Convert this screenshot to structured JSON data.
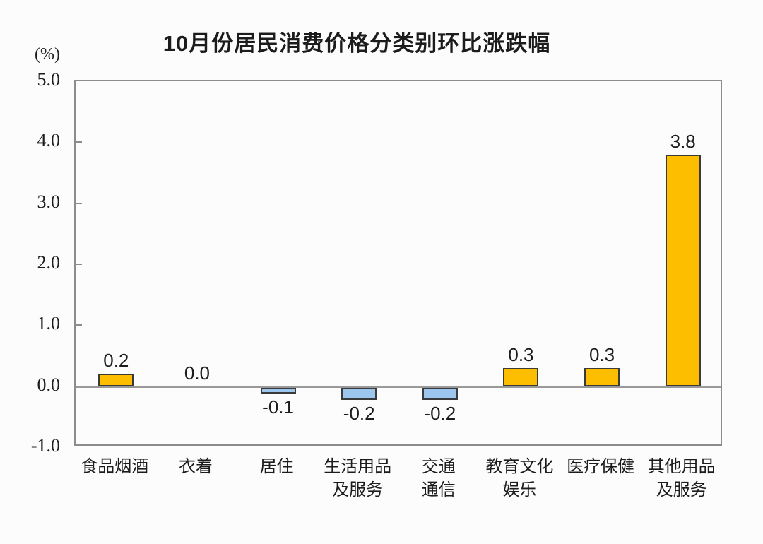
{
  "title": "10月份居民消费价格分类别环比涨跌幅",
  "unit_label": "(%)",
  "chart_data": {
    "type": "bar",
    "title": "10月份居民消费价格分类别环比涨跌幅",
    "ylabel": "(%)",
    "xlabel": "",
    "categories": [
      "食品烟酒",
      "衣着",
      "居住",
      "生活用品及服务",
      "交通通信",
      "教育文化娱乐",
      "医疗保健",
      "其他用品及服务"
    ],
    "category_lines": [
      [
        "食品烟酒"
      ],
      [
        "衣着"
      ],
      [
        "居住"
      ],
      [
        "生活用品",
        "及服务"
      ],
      [
        "交通",
        "通信"
      ],
      [
        "教育文化",
        "娱乐"
      ],
      [
        "医疗保健"
      ],
      [
        "其他用品",
        "及服务"
      ]
    ],
    "values": [
      0.2,
      0.0,
      -0.1,
      -0.2,
      -0.2,
      0.3,
      0.3,
      3.8
    ],
    "value_labels": [
      "0.2",
      "0.0",
      "-0.1",
      "-0.2",
      "-0.2",
      "0.3",
      "0.3",
      "3.8"
    ],
    "yticks": [
      5.0,
      4.0,
      3.0,
      2.0,
      1.0,
      0.0,
      -1.0
    ],
    "ytick_labels": [
      "5.0",
      "4.0",
      "3.0",
      "2.0",
      "1.0",
      "0.0",
      "-1.0"
    ],
    "ylim": [
      -1.0,
      5.0
    ],
    "grid": false,
    "legend": null,
    "colors": {
      "positive_fill": "#FDBE00",
      "negative_fill": "#9DC6EE",
      "bar_border": "#3a3a3a",
      "axis": "#8c8c8c",
      "zero_line": "#999999",
      "text": "#1c1c1c",
      "background": "#fcfcfc"
    }
  }
}
